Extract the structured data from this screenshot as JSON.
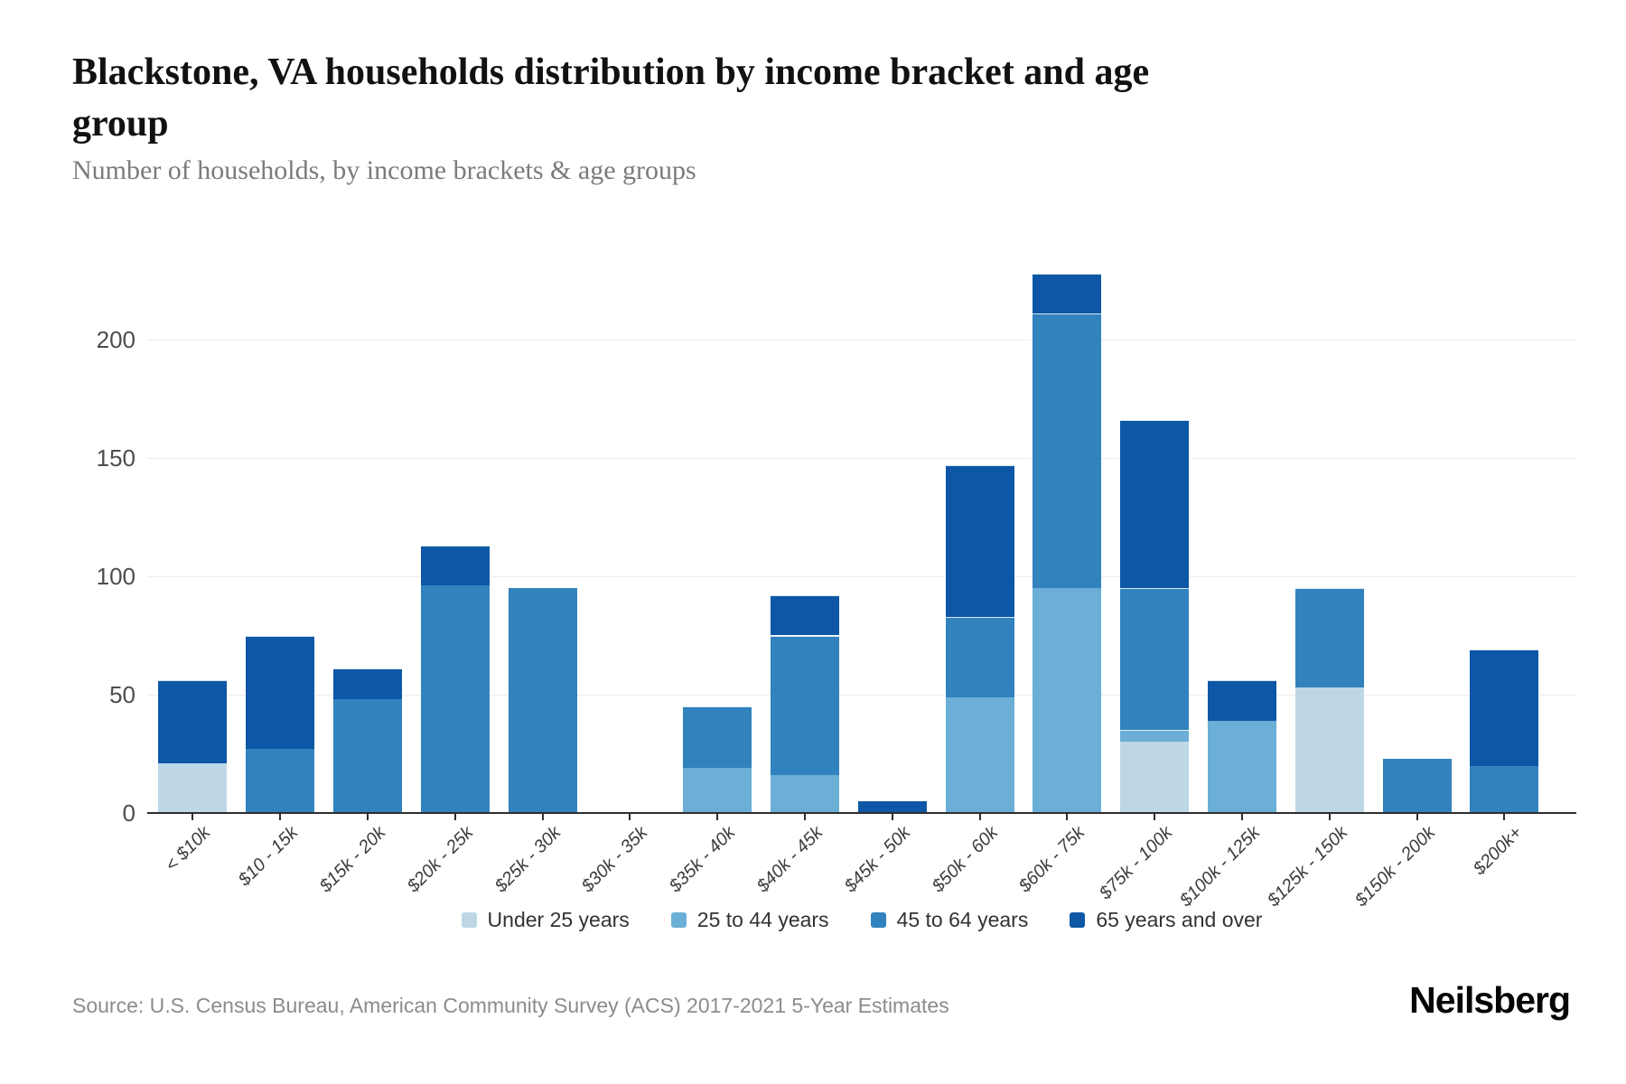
{
  "header": {
    "title": "Blackstone, VA households distribution by income bracket and age\ngroup",
    "subtitle": "Number of households, by income brackets & age groups"
  },
  "footer": {
    "source": "Source: U.S. Census Bureau, American Community Survey (ACS) 2017-2021 5-Year Estimates",
    "logo": "Neilsberg"
  },
  "chart_data": {
    "type": "bar",
    "stacked": true,
    "title": "Blackstone, VA households distribution by income bracket and age group",
    "xlabel": "",
    "ylabel": "Number of households",
    "ylim": [
      0,
      229
    ],
    "y_ticks": [
      0,
      50,
      100,
      150,
      200
    ],
    "grid": true,
    "legend_position": "bottom",
    "categories": [
      "< $10k",
      "$10 - 15k",
      "$15k - 20k",
      "$20k - 25k",
      "$25k - 30k",
      "$30k - 35k",
      "$35k - 40k",
      "$40k - 45k",
      "$45k - 50k",
      "$50k - 60k",
      "$60k - 75k",
      "$75k - 100k",
      "$100k - 125k",
      "$125k - 150k",
      "$150k - 200k",
      "$200k+"
    ],
    "series": [
      {
        "name": "Under 25 years",
        "color": "#bdd7e7",
        "values": [
          21,
          0,
          0,
          0,
          0,
          0,
          0,
          0,
          0,
          0,
          0,
          30,
          0,
          53,
          0,
          0
        ]
      },
      {
        "name": "25 to 44 years",
        "color": "#6baed6",
        "values": [
          0,
          0,
          0,
          0,
          0,
          0,
          19,
          16,
          0,
          49,
          95,
          5,
          39,
          0,
          0,
          0
        ]
      },
      {
        "name": "45 to 64 years",
        "color": "#3182bd",
        "values": [
          0,
          27,
          48,
          96,
          95,
          0,
          26,
          59,
          0,
          34,
          116,
          60,
          0,
          42,
          23,
          20
        ]
      },
      {
        "name": "65 years and over",
        "color": "#0d57a6",
        "values": [
          35,
          48,
          13,
          17,
          0,
          0,
          0,
          17,
          5,
          64,
          17,
          71,
          17,
          0,
          0,
          49
        ]
      }
    ],
    "totals": [
      56,
      75,
      61,
      113,
      95,
      0,
      45,
      92,
      5,
      147,
      228,
      166,
      56,
      95,
      23,
      69
    ]
  },
  "colors": {
    "axis": "#2e2e2e",
    "gridline": "#ededed",
    "tick_label": "#4d4d4d"
  }
}
